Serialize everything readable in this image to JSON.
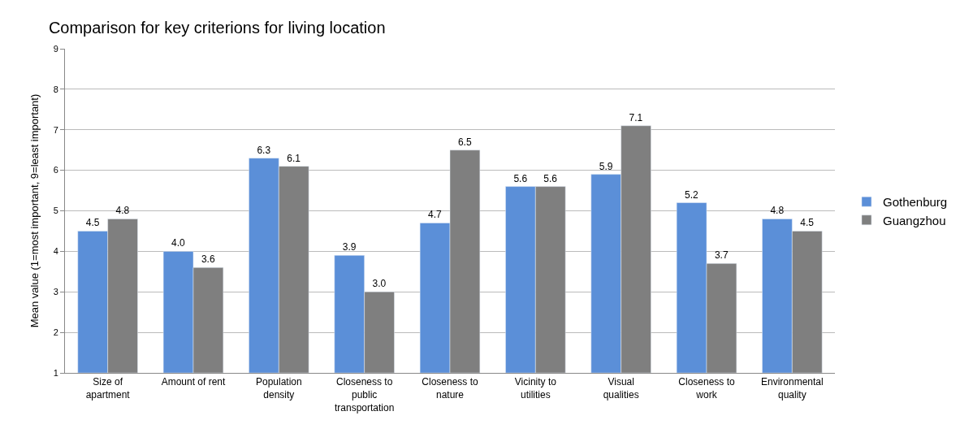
{
  "chart_data": {
    "type": "bar",
    "title": "Comparison for key criterions for living location",
    "ylabel": "Mean value (1=most important, 9=least important)",
    "categories": [
      "Size of apartment",
      "Amount of rent",
      "Population density",
      "Closeness to public transportation",
      "Closeness to nature",
      "Vicinity to utilities",
      "Visual qualities",
      "Closeness to work",
      "Environmental quality"
    ],
    "series": [
      {
        "name": "Gothenburg",
        "color": "#5b8fd8",
        "values": [
          4.5,
          4.0,
          6.3,
          3.9,
          4.7,
          5.6,
          5.9,
          5.2,
          4.8
        ],
        "value_labels": [
          "4.5",
          "4.0",
          "6.3",
          "3.9",
          "4.7",
          "5.6",
          "5.9",
          "5.2",
          "4.8"
        ]
      },
      {
        "name": "Guangzhou",
        "color": "#7f7f7f",
        "values": [
          4.8,
          3.6,
          6.1,
          3.0,
          6.5,
          5.6,
          7.1,
          3.7,
          4.5
        ],
        "value_labels": [
          "4.8",
          "3.6",
          "6.1",
          "3.0",
          "6.5",
          "5.6",
          "7.1",
          "3.7",
          "4.5"
        ]
      }
    ],
    "ylim": [
      1,
      9
    ],
    "yticks": [
      1,
      2,
      3,
      4,
      5,
      6,
      7,
      8,
      9
    ],
    "grid": "y",
    "legend": "right"
  }
}
